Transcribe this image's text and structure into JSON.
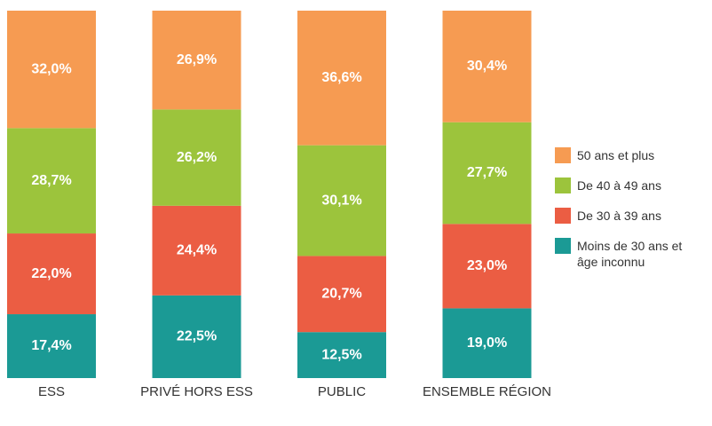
{
  "chart_data": {
    "type": "stacked_bar",
    "categories": [
      "ESS",
      "PRIVÉ HORS ESS",
      "PUBLIC",
      "ENSEMBLE RÉGION"
    ],
    "series": [
      {
        "name": "Moins de 30 ans et âge inconnu",
        "color": "#1b9a95",
        "values": [
          17.4,
          22.5,
          12.5,
          19.0
        ],
        "value_labels": [
          "17,4%",
          "22,5%",
          "12,5%",
          "19,0%"
        ]
      },
      {
        "name": "De 30 à 39 ans",
        "color": "#eb5d43",
        "values": [
          22.0,
          24.4,
          20.7,
          23.0
        ],
        "value_labels": [
          "22,0%",
          "24,4%",
          "20,7%",
          "23,0%"
        ]
      },
      {
        "name": "De 40 à 49 ans",
        "color": "#9cc43c",
        "values": [
          28.7,
          26.2,
          30.1,
          27.7
        ],
        "value_labels": [
          "28,7%",
          "26,2%",
          "30,1%",
          "27,7%"
        ]
      },
      {
        "name": "50 ans et plus",
        "color": "#f69b52",
        "values": [
          32.0,
          26.9,
          36.6,
          30.4
        ],
        "value_labels": [
          "32,0%",
          "26,9%",
          "36,6%",
          "30,4%"
        ]
      }
    ],
    "legend": "right"
  }
}
